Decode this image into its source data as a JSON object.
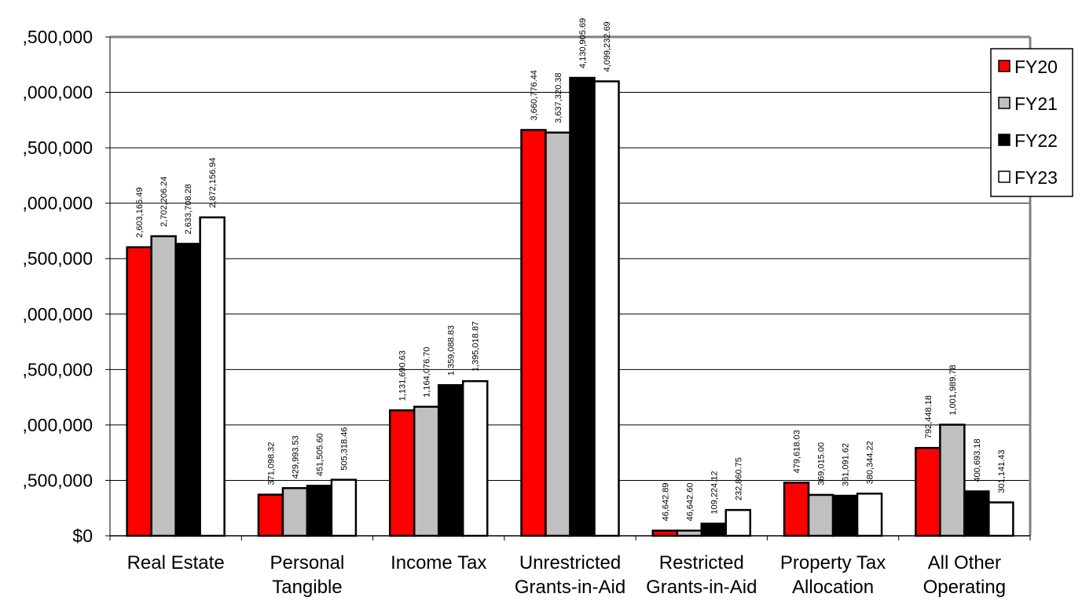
{
  "chart_data": {
    "type": "bar",
    "title": "",
    "xlabel": "",
    "ylabel": "",
    "ylim": [
      0,
      4500000
    ],
    "y_tick_labels": [
      "$0",
      ",500,000",
      ",000,000",
      ",500,000",
      ",000,000",
      ",500,000",
      ",000,000",
      ",500,000",
      ",000,000",
      ",500,000"
    ],
    "y_ticks": [
      0,
      500000,
      1000000,
      1500000,
      2000000,
      2500000,
      3000000,
      3500000,
      4000000,
      4500000
    ],
    "categories": [
      [
        "Real Estate"
      ],
      [
        "Personal",
        "Tangible"
      ],
      [
        "Income Tax"
      ],
      [
        "Unrestricted",
        "Grants-in-Aid"
      ],
      [
        "Restricted",
        "Grants-in-Aid"
      ],
      [
        "Property Tax",
        "Allocation"
      ],
      [
        "All Other",
        "Operating"
      ]
    ],
    "legend_position": "top-right",
    "grid": true,
    "series": [
      {
        "name": "FY20",
        "color": "#ff0000",
        "values": [
          2603165.49,
          371098.32,
          1131690.63,
          3660776.44,
          46642.89,
          479618.03,
          792448.18
        ],
        "labels": [
          "2,603,165.49",
          "371,098.32",
          "1,131,690.63",
          "3,660,776.44",
          "46,642.89",
          "479,618.03",
          "792,448.18"
        ]
      },
      {
        "name": "FY21",
        "color": "#c0c0c0",
        "values": [
          2702206.24,
          429993.53,
          1164076.7,
          3637320.38,
          46642.6,
          369015.0,
          1001989.78
        ],
        "labels": [
          "2,702,206.24",
          "429,993.53",
          "1,164,076.70",
          "3,637,320.38",
          "46,642.60",
          "369,015.00",
          "1,001,989.78"
        ]
      },
      {
        "name": "FY22",
        "color": "#000000",
        "values": [
          2633708.28,
          451505.6,
          1359088.83,
          4130905.69,
          109224.12,
          361091.62,
          400693.18
        ],
        "labels": [
          "2,633,708.28",
          "451,505.60",
          "1,359,088.83",
          "4,130,905.69",
          "109,224.12",
          "361,091.62",
          "400,693.18"
        ]
      },
      {
        "name": "FY23",
        "color": "#ffffff",
        "values": [
          2872156.94,
          505318.46,
          1395018.87,
          4099232.69,
          232860.75,
          380344.22,
          301141.43
        ],
        "labels": [
          "2,872,156.94",
          "505,318.46",
          "1,395,018.87",
          "4,099,232.69",
          "232,860.75",
          "380,344.22",
          "301,141.43"
        ]
      }
    ]
  }
}
